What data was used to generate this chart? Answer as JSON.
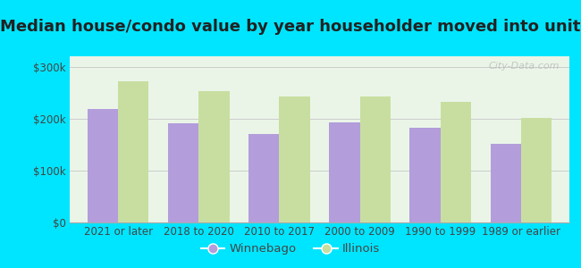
{
  "title": "Median house/condo value by year householder moved into unit",
  "categories": [
    "2021 or later",
    "2018 to 2020",
    "2010 to 2017",
    "2000 to 2009",
    "1990 to 1999",
    "1989 or earlier"
  ],
  "winnebago_values": [
    218000,
    191000,
    170000,
    193000,
    182000,
    152000
  ],
  "illinois_values": [
    271000,
    253000,
    243000,
    242000,
    233000,
    202000
  ],
  "winnebago_color": "#b39ddb",
  "illinois_color": "#c8dea0",
  "background_color": "#00e5ff",
  "plot_bg_color": "#eaf5e8",
  "ylim": [
    0,
    320000
  ],
  "yticks": [
    0,
    100000,
    200000,
    300000
  ],
  "ytick_labels": [
    "$0",
    "$100k",
    "$200k",
    "$300k"
  ],
  "title_fontsize": 13,
  "tick_fontsize": 8.5,
  "legend_fontsize": 9.5,
  "watermark": "City-Data.com"
}
